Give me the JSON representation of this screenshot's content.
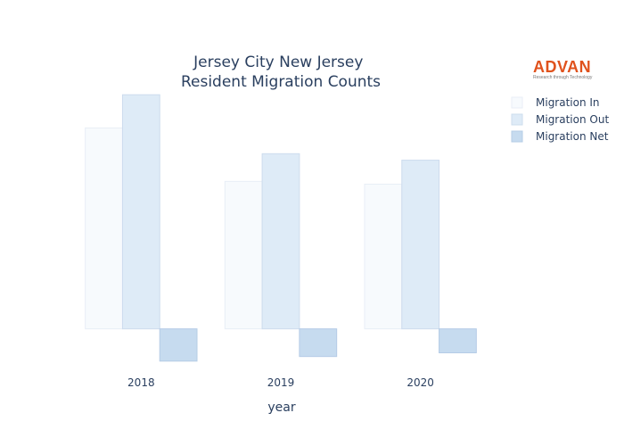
{
  "logo": {
    "name": "ADVAN",
    "tagline": "Research through Technology"
  },
  "chart_data": {
    "type": "bar",
    "title_lines": [
      "Jersey City New Jersey",
      "Resident Migration Counts"
    ],
    "xlabel": "year",
    "ylabel": "",
    "categories": [
      "2018",
      "2019",
      "2020"
    ],
    "series": [
      {
        "name": "Migration In",
        "values": [
          21800,
          16000,
          15700
        ],
        "fill": "#f7fafd",
        "stroke": "#e8eef6"
      },
      {
        "name": "Migration Out",
        "values": [
          25400,
          19000,
          18300
        ],
        "fill": "#deebf7",
        "stroke": "#cddcee"
      },
      {
        "name": "Migration Net",
        "values": [
          -3500,
          -3000,
          -2600
        ],
        "fill": "#c6dbef",
        "stroke": "#b5cce6"
      }
    ],
    "ylim": [
      -4000,
      26000
    ],
    "grid": false,
    "legend_position": "top-right"
  }
}
